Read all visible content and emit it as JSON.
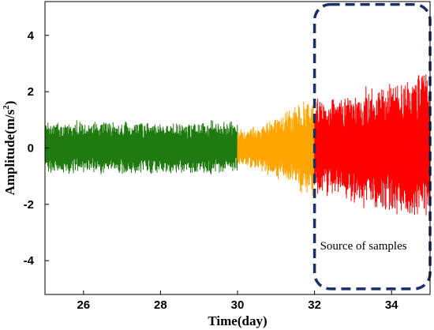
{
  "chart_data": {
    "type": "line",
    "title": "",
    "xlabel": "Time(day)",
    "ylabel_parts": [
      "Amplitude(m/s",
      "2",
      ")"
    ],
    "xlim": [
      25,
      35
    ],
    "ylim": [
      -5.2,
      5.2
    ],
    "x_ticks": [
      26,
      28,
      30,
      32,
      34
    ],
    "y_ticks": [
      -4,
      -2,
      0,
      2,
      4
    ],
    "grid": false,
    "legend": "none",
    "series": [
      {
        "color": "#1f7a0f",
        "x_range": [
          25,
          30
        ],
        "amplitude": [
          0.85,
          0.85
        ],
        "peak": 1.2
      },
      {
        "color": "#ffa500",
        "x_range": [
          30,
          32
        ],
        "amplitude": [
          0.6,
          1.7
        ],
        "peak": 2.0
      },
      {
        "color": "#ff0000",
        "x_range": [
          32,
          35
        ],
        "amplitude": [
          1.6,
          2.6
        ],
        "peak": 3.0
      }
    ],
    "annotation": {
      "text": "Source of samples",
      "box_x": [
        32,
        35
      ],
      "box_y": [
        -5.0,
        5.1
      ],
      "box_color": "#1a2f66"
    }
  }
}
